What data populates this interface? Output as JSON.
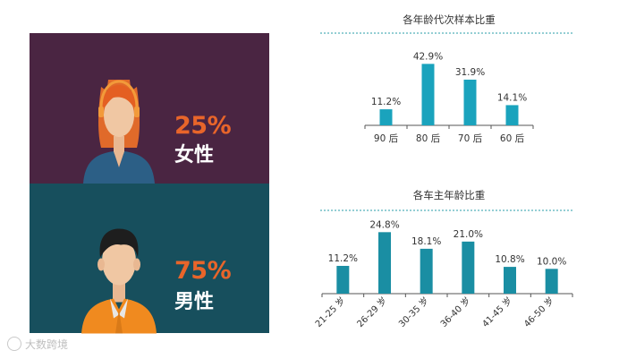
{
  "gender_panels": [
    {
      "percent": "25%",
      "label": "女性",
      "colors": {
        "background": "#4a2542",
        "percent": "#e8652a",
        "label": "#ffffff"
      }
    },
    {
      "percent": "75%",
      "label": "男性",
      "colors": {
        "background": "#174f5d",
        "percent": "#e8652a",
        "label": "#ffffff"
      }
    }
  ],
  "watermark": "大数跨境",
  "chart_data": [
    {
      "type": "bar",
      "title": "各年龄代次样本比重",
      "categories": [
        "90 后",
        "80 后",
        "70 后",
        "60 后"
      ],
      "series": [
        {
          "values": [
            11.2,
            42.9,
            31.9,
            14.1
          ]
        }
      ],
      "data_labels": [
        "11.2%",
        "42.9%",
        "31.9%",
        "14.1%"
      ],
      "ylim": [
        0,
        45
      ],
      "grid": false,
      "bar_color": "#1aa3bd"
    },
    {
      "type": "bar",
      "title": "各车主年龄比重",
      "categories": [
        "21-25 岁",
        "26-29 岁",
        "30-35 岁",
        "36-40 岁",
        "41-45 岁",
        "46-50 岁"
      ],
      "series": [
        {
          "values": [
            11.2,
            24.8,
            18.1,
            21.0,
            10.8,
            10.0
          ]
        }
      ],
      "data_labels": [
        "11.2%",
        "24.8%",
        "18.1%",
        "21.0%",
        "10.8%",
        "10.0%"
      ],
      "ylim": [
        0,
        26
      ],
      "grid": false,
      "bar_color": "#1a8ea3"
    }
  ]
}
